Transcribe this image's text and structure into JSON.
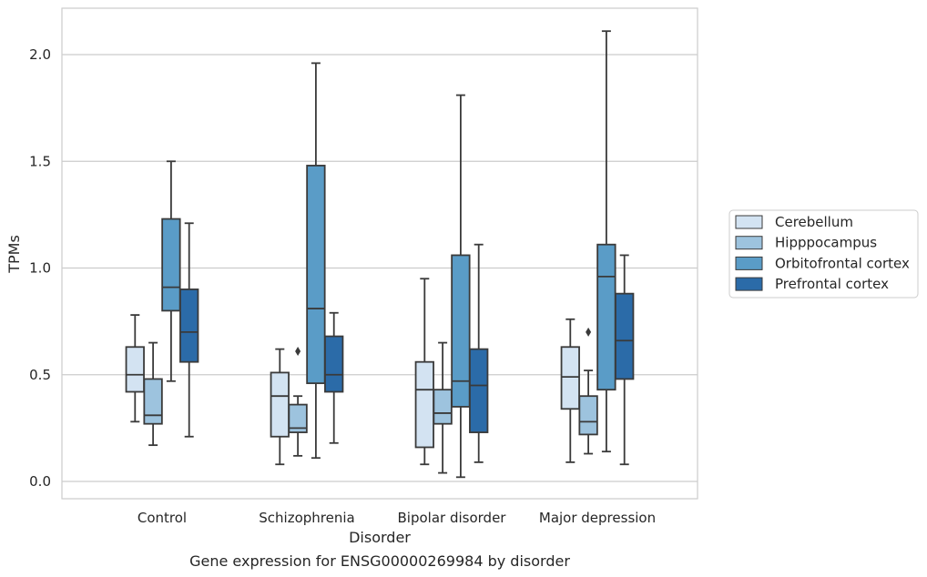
{
  "chart_data": {
    "type": "box",
    "title": "",
    "caption": "Gene expression for ENSG00000269984 by disorder",
    "xlabel": "Disorder",
    "ylabel": "TPMs",
    "ylim": [
      -0.08,
      2.22
    ],
    "yticks": [
      0.0,
      0.5,
      1.0,
      1.5,
      2.0
    ],
    "ytick_labels": [
      "0.0",
      "0.5",
      "1.0",
      "1.5",
      "2.0"
    ],
    "grid": "horizontal",
    "legend_position": "right",
    "categories": [
      "Control",
      "Schizophrenia",
      "Bipolar disorder",
      "Major depression"
    ],
    "series": [
      {
        "name": "Cerebellum",
        "color": "#d3e3f2",
        "boxes": [
          {
            "whislo": 0.28,
            "q1": 0.42,
            "med": 0.5,
            "q3": 0.63,
            "whishi": 0.78,
            "fliers": []
          },
          {
            "whislo": 0.08,
            "q1": 0.21,
            "med": 0.4,
            "q3": 0.51,
            "whishi": 0.62,
            "fliers": []
          },
          {
            "whislo": 0.08,
            "q1": 0.16,
            "med": 0.43,
            "q3": 0.56,
            "whishi": 0.95,
            "fliers": []
          },
          {
            "whislo": 0.09,
            "q1": 0.34,
            "med": 0.49,
            "q3": 0.63,
            "whishi": 0.76,
            "fliers": []
          }
        ]
      },
      {
        "name": "Hipppocampus",
        "color": "#9dc3de",
        "boxes": [
          {
            "whislo": 0.17,
            "q1": 0.27,
            "med": 0.31,
            "q3": 0.48,
            "whishi": 0.65,
            "fliers": []
          },
          {
            "whislo": 0.12,
            "q1": 0.23,
            "med": 0.25,
            "q3": 0.36,
            "whishi": 0.4,
            "fliers": [
              0.61
            ]
          },
          {
            "whislo": 0.04,
            "q1": 0.27,
            "med": 0.32,
            "q3": 0.43,
            "whishi": 0.65,
            "fliers": []
          },
          {
            "whislo": 0.13,
            "q1": 0.22,
            "med": 0.28,
            "q3": 0.4,
            "whishi": 0.52,
            "fliers": [
              0.7
            ]
          }
        ]
      },
      {
        "name": "Orbitofrontal cortex",
        "color": "#5a9cc7",
        "boxes": [
          {
            "whislo": 0.47,
            "q1": 0.8,
            "med": 0.91,
            "q3": 1.23,
            "whishi": 1.5,
            "fliers": []
          },
          {
            "whislo": 0.11,
            "q1": 0.46,
            "med": 0.81,
            "q3": 1.48,
            "whishi": 1.96,
            "fliers": []
          },
          {
            "whislo": 0.02,
            "q1": 0.35,
            "med": 0.47,
            "q3": 1.06,
            "whishi": 1.81,
            "fliers": []
          },
          {
            "whislo": 0.14,
            "q1": 0.43,
            "med": 0.96,
            "q3": 1.11,
            "whishi": 2.11,
            "fliers": []
          }
        ]
      },
      {
        "name": "Prefrontal cortex",
        "color": "#2b6ba8",
        "boxes": [
          {
            "whislo": 0.21,
            "q1": 0.56,
            "med": 0.7,
            "q3": 0.9,
            "whishi": 1.21,
            "fliers": []
          },
          {
            "whislo": 0.18,
            "q1": 0.42,
            "med": 0.5,
            "q3": 0.68,
            "whishi": 0.79,
            "fliers": []
          },
          {
            "whislo": 0.09,
            "q1": 0.23,
            "med": 0.45,
            "q3": 0.62,
            "whishi": 1.11,
            "fliers": []
          },
          {
            "whislo": 0.08,
            "q1": 0.48,
            "med": 0.66,
            "q3": 0.88,
            "whishi": 1.06,
            "fliers": []
          }
        ]
      }
    ]
  }
}
